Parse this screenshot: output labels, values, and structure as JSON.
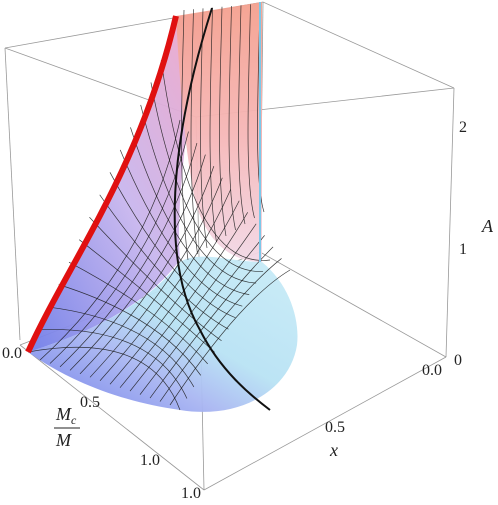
{
  "chart_data": {
    "type": "surface",
    "x_ticks": [
      "0.0",
      "0.5",
      "1.0"
    ],
    "m_ticks": [
      "0.0",
      "0.5",
      "1.0"
    ],
    "a_ticks": [
      "0",
      "1",
      "2"
    ],
    "xlabel": "x",
    "ylabel_numerator": "M",
    "ylabel_sub": "c",
    "ylabel_denominator": "M",
    "zlabel": "A",
    "xlim": [
      0,
      1
    ],
    "ylim": [
      0,
      1
    ],
    "zlim": [
      0,
      2.8
    ],
    "colors": {
      "edge_red": "#e01010",
      "edge_black": "#111111",
      "surface_low": "#6f7de8",
      "surface_mid": "#a8d8f0",
      "surface_high": "#f5a08a"
    }
  }
}
